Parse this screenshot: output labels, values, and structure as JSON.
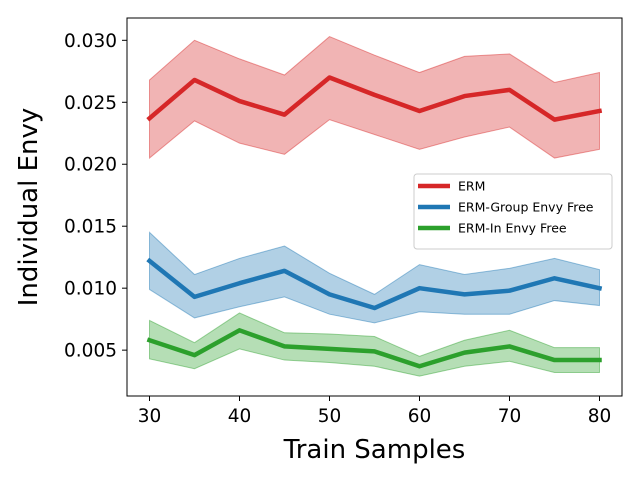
{
  "chart_data": {
    "type": "line",
    "xlabel": "Train Samples",
    "ylabel": "Individual Envy",
    "x": [
      30,
      35,
      40,
      45,
      50,
      55,
      60,
      65,
      70,
      75,
      80
    ],
    "xlim": [
      27.5,
      82.5
    ],
    "ylim": [
      0.0013,
      0.0318
    ],
    "xticks": [
      30,
      40,
      50,
      60,
      70,
      80
    ],
    "xtick_labels": [
      "30",
      "40",
      "50",
      "60",
      "70",
      "80"
    ],
    "yticks": [
      0.005,
      0.01,
      0.015,
      0.02,
      0.025,
      0.03
    ],
    "ytick_labels": [
      "0.005",
      "0.010",
      "0.015",
      "0.020",
      "0.025",
      "0.030"
    ],
    "grid": false,
    "legend_position": "center-right",
    "series": [
      {
        "name": "ERM",
        "color": "#d62728",
        "values": [
          0.0237,
          0.0268,
          0.0251,
          0.024,
          0.027,
          0.0256,
          0.0243,
          0.0255,
          0.026,
          0.0236,
          0.0243
        ],
        "upper": [
          0.0268,
          0.03,
          0.0285,
          0.0272,
          0.0303,
          0.0288,
          0.0274,
          0.0287,
          0.0289,
          0.0266,
          0.0274
        ],
        "lower": [
          0.0205,
          0.0235,
          0.0217,
          0.0208,
          0.0236,
          0.0224,
          0.0212,
          0.0222,
          0.023,
          0.0205,
          0.0212
        ]
      },
      {
        "name": "ERM-Group Envy Free",
        "color": "#1f77b4",
        "values": [
          0.0122,
          0.0093,
          0.0104,
          0.0114,
          0.0095,
          0.0084,
          0.01,
          0.0095,
          0.0098,
          0.0108,
          0.01
        ],
        "upper": [
          0.0145,
          0.0111,
          0.0124,
          0.0134,
          0.0112,
          0.0095,
          0.0119,
          0.0111,
          0.0116,
          0.0124,
          0.0115
        ],
        "lower": [
          0.0099,
          0.0076,
          0.0085,
          0.0093,
          0.0079,
          0.0072,
          0.0081,
          0.0079,
          0.0079,
          0.009,
          0.0086
        ]
      },
      {
        "name": "ERM-In Envy Free",
        "color": "#2ca02c",
        "values": [
          0.0058,
          0.0046,
          0.0066,
          0.0053,
          0.0051,
          0.0049,
          0.0037,
          0.0048,
          0.0053,
          0.0042,
          0.0042
        ],
        "upper": [
          0.0074,
          0.0056,
          0.008,
          0.0064,
          0.0063,
          0.0061,
          0.0045,
          0.0058,
          0.0066,
          0.0052,
          0.0052
        ],
        "lower": [
          0.0043,
          0.0035,
          0.0051,
          0.0042,
          0.004,
          0.0037,
          0.0029,
          0.0037,
          0.0041,
          0.0032,
          0.0032
        ]
      }
    ]
  }
}
